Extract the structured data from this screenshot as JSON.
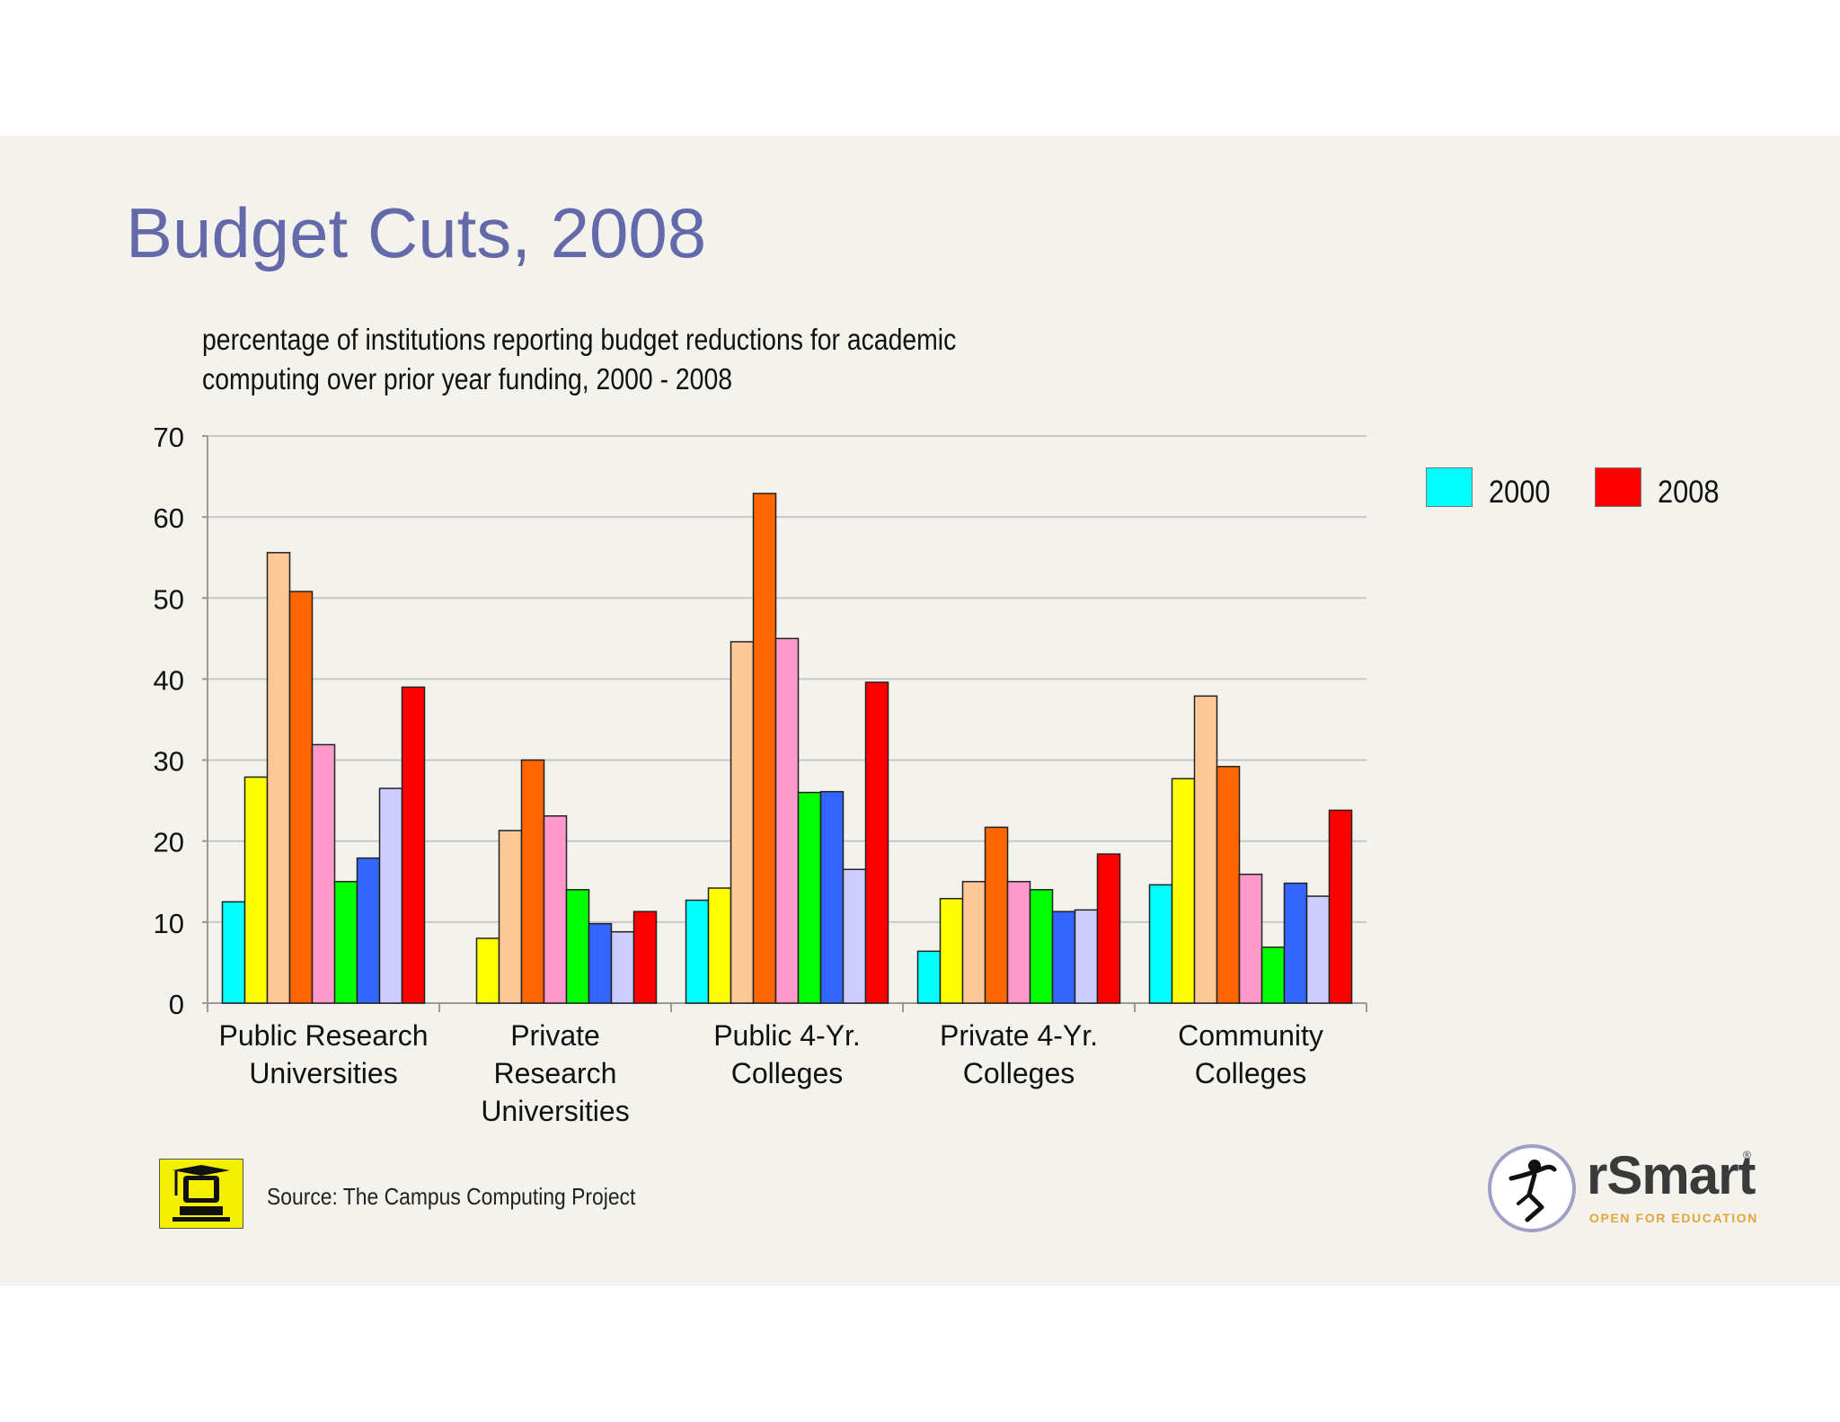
{
  "slide": {
    "title": "Budget Cuts, 2008",
    "subtitle": "percentage of institutions reporting budget reductions for academic computing over prior year funding, 2000 - 2008",
    "source": "Source: The Campus Computing Project",
    "logo": {
      "name": "rSmart",
      "registered": "®",
      "tagline": "OPEN FOR EDUCATION"
    }
  },
  "legend": [
    {
      "label": "2000",
      "color": "#00ffff"
    },
    {
      "label": "2008",
      "color": "#ff0000"
    }
  ],
  "chart_data": {
    "type": "bar",
    "title": "",
    "xlabel": "",
    "ylabel": "",
    "ylim": [
      0,
      70
    ],
    "yticks": [
      0,
      10,
      20,
      30,
      40,
      50,
      60,
      70
    ],
    "grid": true,
    "legend_position": "top-right",
    "categories": [
      "Public Research Universities",
      "Private Research Universities",
      "Public 4-Yr. Colleges",
      "Private 4-Yr. Colleges",
      "Community Colleges"
    ],
    "category_lines": [
      [
        "Public Research",
        "Universities"
      ],
      [
        "Private",
        "Research",
        "Universities"
      ],
      [
        "Public 4-Yr.",
        "Colleges"
      ],
      [
        "Private 4-Yr.",
        "Colleges"
      ],
      [
        "Community",
        "Colleges"
      ]
    ],
    "series": [
      {
        "name": "2000",
        "color": "#00ffff",
        "values": [
          12.5,
          0,
          12.7,
          6.4,
          14.6
        ]
      },
      {
        "color": "#ffff00",
        "values": [
          27.9,
          8.0,
          14.2,
          12.9,
          27.7
        ]
      },
      {
        "color": "#fdc898",
        "values": [
          55.6,
          21.3,
          44.6,
          15.0,
          37.9
        ]
      },
      {
        "color": "#ff6600",
        "values": [
          50.8,
          30.0,
          62.9,
          21.7,
          29.2
        ]
      },
      {
        "color": "#ff99cc",
        "values": [
          31.9,
          23.1,
          45.0,
          15.0,
          15.9
        ]
      },
      {
        "color": "#00ff00",
        "values": [
          15.0,
          14.0,
          26.0,
          14.0,
          6.9
        ]
      },
      {
        "color": "#3366ff",
        "values": [
          17.9,
          9.8,
          26.1,
          11.3,
          14.8
        ]
      },
      {
        "color": "#ccccff",
        "values": [
          26.5,
          8.8,
          16.5,
          11.5,
          13.2
        ]
      },
      {
        "name": "2008",
        "color": "#ff0000",
        "values": [
          39.0,
          11.3,
          39.6,
          18.4,
          23.8
        ]
      }
    ]
  }
}
